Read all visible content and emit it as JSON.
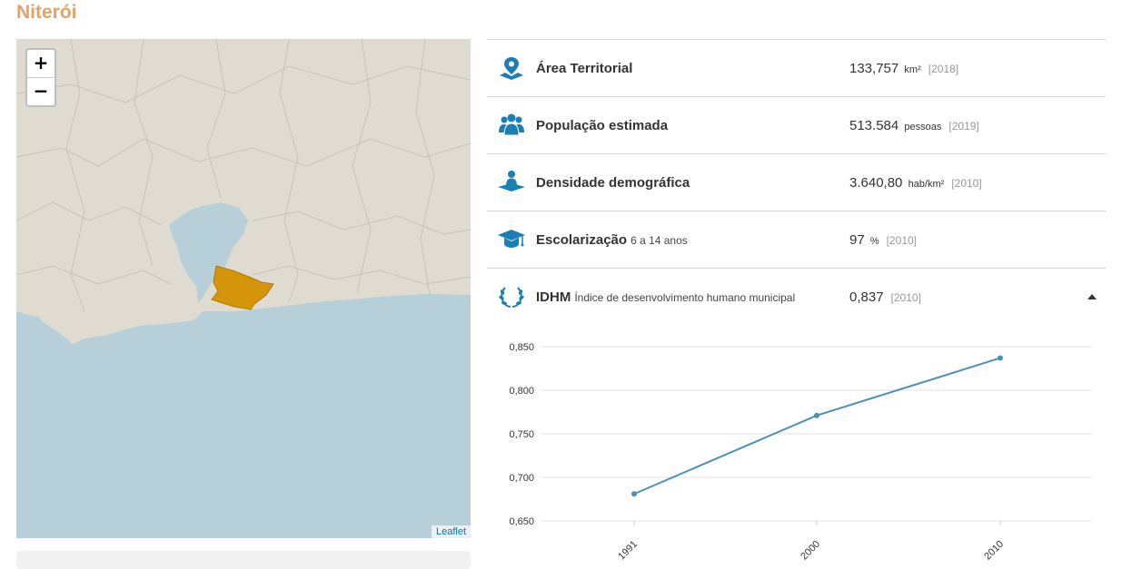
{
  "title": "Niterói",
  "map": {
    "zoom_in": "+",
    "zoom_out": "−",
    "attribution": "Leaflet"
  },
  "indicators": [
    {
      "icon": "map-pin-icon",
      "label": "Área Territorial",
      "sub": "",
      "value": "133,757",
      "unit": "km²",
      "year": "[2018]"
    },
    {
      "icon": "people-icon",
      "label": "População estimada",
      "sub": "",
      "value": "513.584",
      "unit": "pessoas",
      "year": "[2019]"
    },
    {
      "icon": "density-person-icon",
      "label": "Densidade demográfica",
      "sub": "",
      "value": "3.640,80",
      "unit": "hab/km²",
      "year": "[2010]"
    },
    {
      "icon": "graduation-cap-icon",
      "label": "Escolarização",
      "sub": "6 a 14 anos",
      "value": "97",
      "unit": "%",
      "year": "[2010]"
    },
    {
      "icon": "laurel-icon",
      "label": "IDHM",
      "sub": "Índice de desenvolvimento humano municipal",
      "value": "0,837",
      "unit": "",
      "year": "[2010]"
    }
  ],
  "colors": {
    "accent": "#e8a165",
    "icon": "#1a7fb5",
    "line": "#4a90b8",
    "highlight": "#d4950a",
    "water": "#b6cfd9",
    "land": "#dfdbd0"
  },
  "chart_data": {
    "type": "line",
    "categories": [
      "1991",
      "2000",
      "2010"
    ],
    "values": [
      0.681,
      0.771,
      0.837
    ],
    "ylim": [
      0.65,
      0.85
    ],
    "yticks": [
      "0,650",
      "0,700",
      "0,750",
      "0,800",
      "0,850"
    ],
    "grid": true
  }
}
